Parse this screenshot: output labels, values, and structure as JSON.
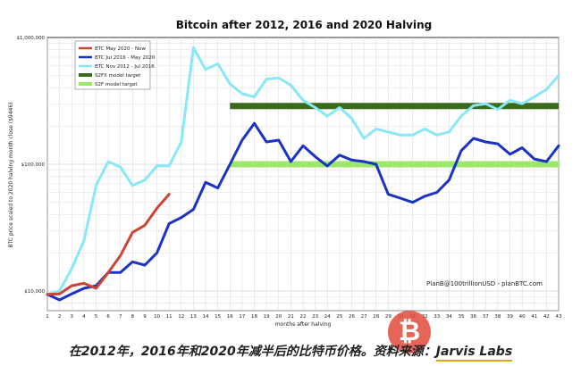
{
  "chart_data": {
    "type": "line",
    "title": "Bitcoin after 2012, 2016 and 2020 Halving",
    "xlabel": "months after halving",
    "ylabel": "BTC price scaled to 2020 halving month close ($9446)",
    "yscale": "log",
    "xlim": [
      1,
      43
    ],
    "ylim": [
      7000,
      1000000
    ],
    "x_ticks": [
      "1",
      "2",
      "3",
      "4",
      "5",
      "6",
      "7",
      "8",
      "9",
      "10",
      "11",
      "12",
      "13",
      "14",
      "15",
      "16",
      "17",
      "18",
      "19",
      "20",
      "21",
      "22",
      "23",
      "24",
      "25",
      "26",
      "27",
      "28",
      "29",
      "30",
      "31",
      "32",
      "33",
      "34",
      "35",
      "36",
      "37",
      "38",
      "39",
      "40",
      "41",
      "42",
      "43"
    ],
    "y_ticks": [
      {
        "value": 10000,
        "label": "$10,000"
      },
      {
        "value": 100000,
        "label": "$100,000"
      },
      {
        "value": 1000000,
        "label": "$1,000,000"
      }
    ],
    "grid": true,
    "legend_position": "top-left",
    "series": [
      {
        "name": "BTC May 2020 - Now",
        "color": "#cc4433",
        "x": [
          1,
          2,
          3,
          4,
          5,
          6,
          7,
          8,
          9,
          10,
          11
        ],
        "y": [
          9400,
          9500,
          11000,
          11500,
          10500,
          14000,
          19000,
          29000,
          33000,
          45000,
          58000
        ]
      },
      {
        "name": "BTC Jul 2016 - May 2020",
        "color": "#1a33c4",
        "x": [
          1,
          2,
          3,
          4,
          5,
          6,
          7,
          8,
          9,
          10,
          11,
          12,
          13,
          14,
          15,
          16,
          17,
          18,
          19,
          20,
          21,
          22,
          23,
          24,
          25,
          26,
          27,
          28,
          29,
          30,
          31,
          32,
          33,
          34,
          35,
          36,
          37,
          38,
          39,
          40,
          41,
          42,
          43
        ],
        "y": [
          9400,
          8500,
          9500,
          10500,
          11000,
          14000,
          14000,
          17000,
          16000,
          20000,
          34000,
          38000,
          44000,
          72000,
          65000,
          100000,
          155000,
          210000,
          150000,
          155000,
          105000,
          140000,
          115000,
          97000,
          118000,
          108000,
          105000,
          100000,
          58000,
          54000,
          50000,
          56000,
          60000,
          75000,
          128000,
          160000,
          150000,
          145000,
          120000,
          135000,
          110000,
          105000,
          140000
        ]
      },
      {
        "name": "BTC Nov 2012 - Jul 2016",
        "color": "#88e8f8",
        "x": [
          1,
          2,
          3,
          4,
          5,
          6,
          7,
          8,
          9,
          10,
          11,
          12,
          13,
          14,
          15,
          16,
          17,
          18,
          19,
          20,
          21,
          22,
          23,
          24,
          25,
          26,
          27,
          28,
          29,
          30,
          31,
          32,
          33,
          34,
          35,
          36,
          37,
          38,
          39,
          40,
          41,
          42,
          43
        ],
        "y": [
          9400,
          10000,
          15000,
          25000,
          68000,
          105000,
          95000,
          68000,
          75000,
          97000,
          97000,
          150000,
          830000,
          560000,
          620000,
          430000,
          360000,
          340000,
          470000,
          480000,
          420000,
          320000,
          280000,
          240000,
          280000,
          230000,
          160000,
          190000,
          180000,
          170000,
          170000,
          190000,
          170000,
          180000,
          240000,
          290000,
          300000,
          270000,
          320000,
          300000,
          340000,
          390000,
          500000
        ]
      }
    ],
    "target_lines": [
      {
        "name": "S2FX model target",
        "color": "#3a6b1c",
        "value": 288000,
        "x_start": 16,
        "x_end": 43
      },
      {
        "name": "S2F model target",
        "color": "#9be86a",
        "value": 100000,
        "x_start": 16,
        "x_end": 43
      }
    ],
    "annotation": "PlanB@100trillionUSD - planBTC.com"
  },
  "caption": {
    "text": "在2012年，2016年和2020年减半后的比特币价格。资料来源：",
    "source": "Jarvis Labs"
  }
}
